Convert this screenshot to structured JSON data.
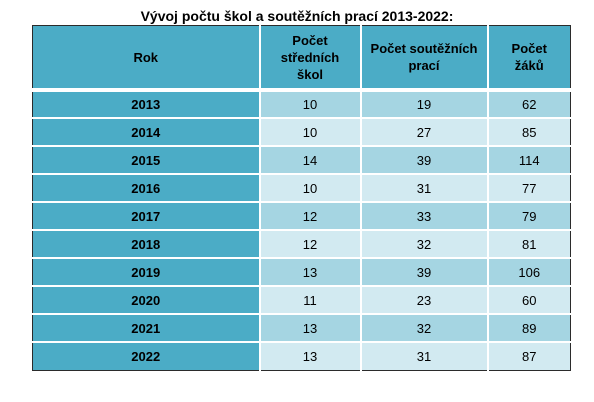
{
  "title": "Vývoj počtu škol a soutěžních prací 2013-2022:",
  "headers": {
    "year": "Rok",
    "schools": "Počet středních škol",
    "works": "Počet soutěžních prací",
    "students": "Počet žáků"
  },
  "rows": [
    {
      "year": "2013",
      "schools": "10",
      "works": "19",
      "students": "62"
    },
    {
      "year": "2014",
      "schools": "10",
      "works": "27",
      "students": "85"
    },
    {
      "year": "2015",
      "schools": "14",
      "works": "39",
      "students": "114"
    },
    {
      "year": "2016",
      "schools": "10",
      "works": "31",
      "students": "77"
    },
    {
      "year": "2017",
      "schools": "12",
      "works": "33",
      "students": "79"
    },
    {
      "year": "2018",
      "schools": "12",
      "works": "32",
      "students": "81"
    },
    {
      "year": "2019",
      "schools": "13",
      "works": "39",
      "students": "106"
    },
    {
      "year": "2020",
      "schools": "11",
      "works": "23",
      "students": "60"
    },
    {
      "year": "2021",
      "schools": "13",
      "works": "32",
      "students": "89"
    },
    {
      "year": "2022",
      "schools": "13",
      "works": "31",
      "students": "87"
    }
  ],
  "colors": {
    "header": "#4bacc6",
    "band_dark": "#a5d5e2",
    "band_light": "#d2eaf1"
  }
}
